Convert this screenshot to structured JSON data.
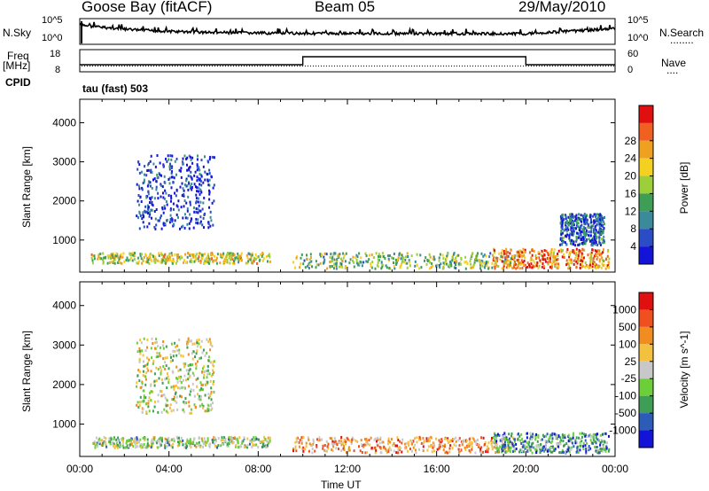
{
  "header": {
    "station": "Goose Bay (fitACF)",
    "beam": "Beam 05",
    "date": "29/May/2010"
  },
  "nsky_panel": {
    "left_label": "N.Sky",
    "right_label": "N.Search",
    "ticks_left": [
      "10^5",
      "10^0"
    ],
    "ticks_right": [
      "10^5",
      "10^0"
    ]
  },
  "freq_panel": {
    "left_label_line1": "Freq",
    "left_label_line2": "[MHz]",
    "cpid_label": "CPID",
    "right_label": "Nave",
    "ticks_left": [
      "18",
      "8"
    ],
    "ticks_right": [
      "60",
      "0"
    ]
  },
  "cpid_text": "tau (fast) 503",
  "chart_data": [
    {
      "type": "heatmap",
      "name": "power",
      "ylabel": "Slant Range [km]",
      "yticks": [
        "1000",
        "2000",
        "3000",
        "4000"
      ],
      "ylim": [
        180,
        4600
      ],
      "colorbar_label": "Power [dB]",
      "colorbar_ticks": [
        "4",
        "8",
        "12",
        "16",
        "20",
        "24",
        "28"
      ],
      "colors": [
        "#1414d8",
        "#2a4cc4",
        "#3a8a9a",
        "#3f9e55",
        "#9ccf3a",
        "#f4d020",
        "#f0a020",
        "#f06020",
        "#e01010"
      ],
      "scatter_regions": [
        {
          "x": [
            0.5,
            8.5
          ],
          "y": [
            430,
            700
          ],
          "level": 0.55
        },
        {
          "x": [
            2.5,
            6.0
          ],
          "y": [
            1300,
            3200
          ],
          "level": 0.1
        },
        {
          "x": [
            9.5,
            19.5
          ],
          "y": [
            300,
            700
          ],
          "level": 0.45
        },
        {
          "x": [
            18.5,
            23.7
          ],
          "y": [
            300,
            800
          ],
          "level": 0.75
        },
        {
          "x": [
            21.5,
            23.5
          ],
          "y": [
            900,
            1700
          ],
          "level": 0.2
        }
      ]
    },
    {
      "type": "heatmap",
      "name": "velocity",
      "ylabel": "Slant Range [km]",
      "yticks": [
        "1000",
        "2000",
        "3000",
        "4000"
      ],
      "ylim": [
        180,
        4600
      ],
      "xticks": [
        "00:00",
        "04:00",
        "08:00",
        "12:00",
        "16:00",
        "20:00",
        "00:00"
      ],
      "xlabel": "Time UT",
      "colorbar_label": "Velocity [m s^-1]",
      "colorbar_ticks": [
        "1000",
        "500",
        "100",
        "25",
        "-25",
        "-100",
        "-500",
        "-1000"
      ],
      "colors": [
        "#1414d8",
        "#2c5cb8",
        "#3f9e55",
        "#6ccf3a",
        "#c8c8c8",
        "#f4c040",
        "#f08c20",
        "#f05020",
        "#e01010"
      ],
      "scatter_regions": [
        {
          "x": [
            0.5,
            8.5
          ],
          "y": [
            430,
            700
          ],
          "level": 0.45
        },
        {
          "x": [
            2.5,
            6.0
          ],
          "y": [
            1300,
            3200
          ],
          "level": 0.5
        },
        {
          "x": [
            9.5,
            19.5
          ],
          "y": [
            300,
            700
          ],
          "level": 0.7
        },
        {
          "x": [
            18.5,
            23.7
          ],
          "y": [
            300,
            800
          ],
          "level": 0.3
        }
      ]
    }
  ]
}
